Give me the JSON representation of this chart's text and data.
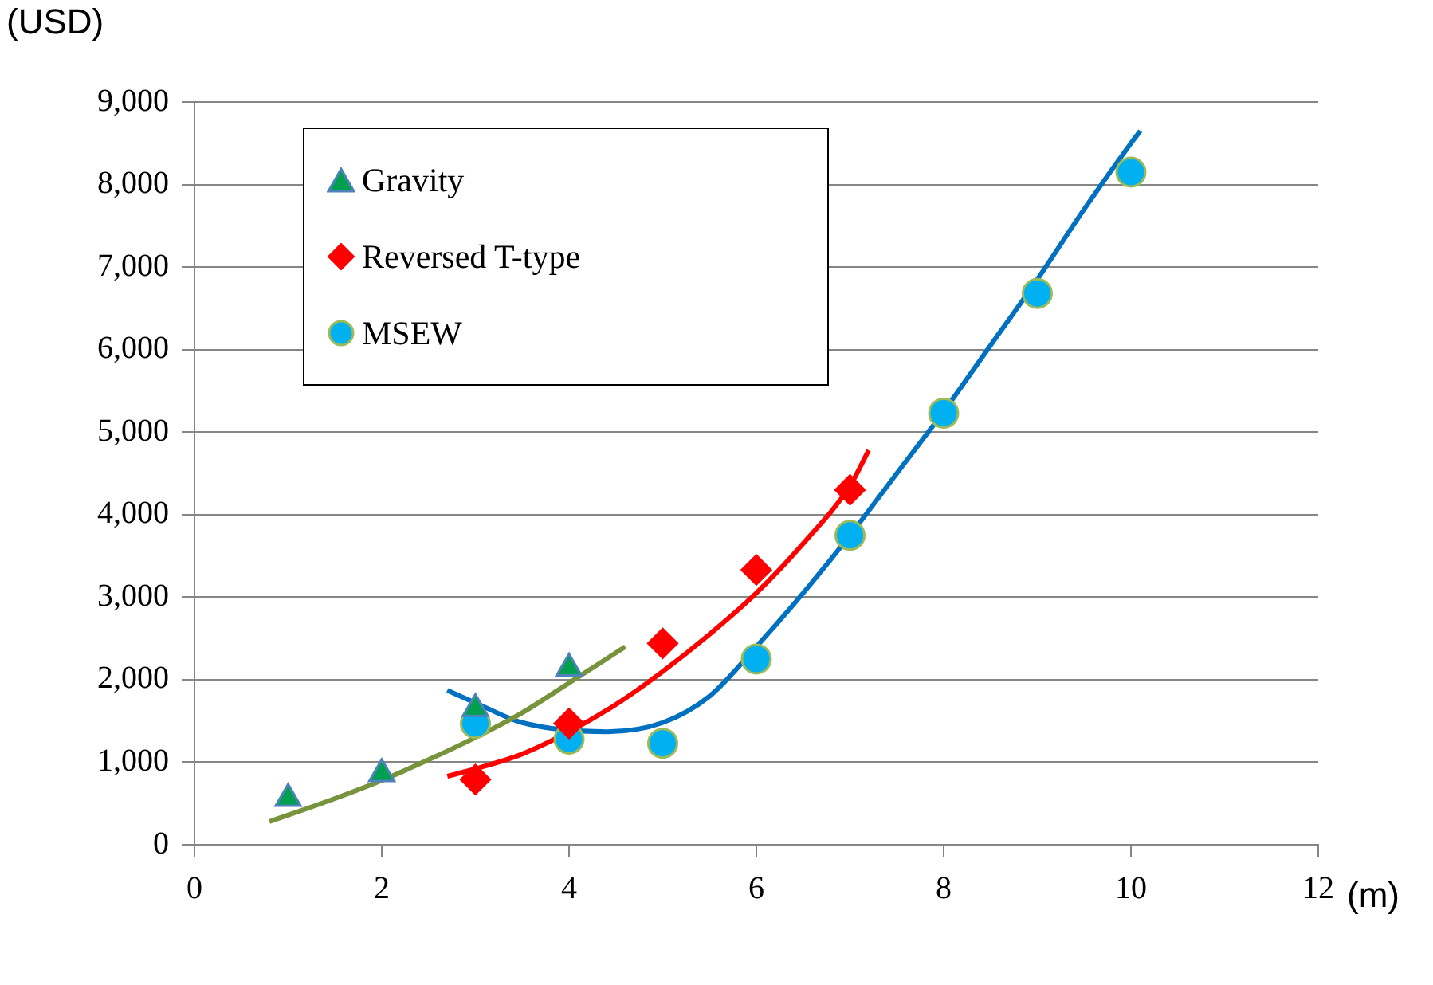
{
  "chart_data": {
    "type": "scatter",
    "xlabel": "(m)",
    "ylabel": "(USD)",
    "xlim": [
      0,
      12
    ],
    "xticks": [
      0,
      2,
      4,
      6,
      8,
      10,
      12
    ],
    "ylim": [
      0,
      9000
    ],
    "yticks": [
      0,
      {
        "value": 1000,
        "label": "1,000"
      },
      {
        "value": 2000,
        "label": "2,000"
      },
      {
        "value": 3000,
        "label": "3,000"
      },
      {
        "value": 4000,
        "label": "4,000"
      },
      {
        "value": 5000,
        "label": "5,000"
      },
      {
        "value": 6000,
        "label": "6,000"
      },
      {
        "value": 7000,
        "label": "7,000"
      },
      {
        "value": 8000,
        "label": "8,000"
      },
      {
        "value": 9000,
        "label": "9,000"
      }
    ],
    "grid": "y",
    "legend": "top left",
    "series": [
      {
        "name": "Gravity",
        "color": "#00a050",
        "marker": "triangle",
        "x": [
          1,
          2,
          3,
          4
        ],
        "values": [
          560,
          860,
          1650,
          2140
        ]
      },
      {
        "name": "Reversed T-type",
        "color": "#ff0000",
        "marker": "diamond",
        "x": [
          3,
          4,
          5,
          6,
          7
        ],
        "values": [
          790,
          1470,
          2440,
          3330,
          4300
        ]
      },
      {
        "name": "MSEW",
        "color": "#00b0f0",
        "marker": "circle",
        "x": [
          3,
          4,
          5,
          6,
          7,
          8,
          9,
          10
        ],
        "values": [
          1470,
          1280,
          1230,
          2250,
          3750,
          5230,
          6680,
          8150
        ]
      },
      {
        "type": "line",
        "color": "#77933c",
        "marker": "none",
        "x": [
          0.8,
          1.5,
          2,
          2.5,
          3,
          3.5,
          4,
          4.6
        ],
        "values": [
          280,
          560,
          780,
          1030,
          1300,
          1600,
          1960,
          2400
        ]
      },
      {
        "type": "line",
        "color": "#ff0000",
        "marker": "none",
        "x": [
          2.7,
          3,
          3.5,
          4,
          4.5,
          5,
          5.5,
          6,
          6.5,
          7,
          7.2
        ],
        "values": [
          830,
          920,
          1100,
          1370,
          1700,
          2100,
          2550,
          3050,
          3650,
          4350,
          4780
        ]
      },
      {
        "type": "line",
        "color": "#0070c0",
        "marker": "none",
        "x": [
          2.7,
          3,
          3.5,
          4.4,
          5,
          5.5,
          6,
          6.5,
          7,
          7.5,
          8,
          8.5,
          9,
          9.5,
          10,
          10.1
        ],
        "values": [
          1870,
          1720,
          1480,
          1370,
          1480,
          1800,
          2400,
          3050,
          3750,
          4500,
          5250,
          6050,
          6850,
          7700,
          8500,
          8650
        ]
      }
    ]
  }
}
